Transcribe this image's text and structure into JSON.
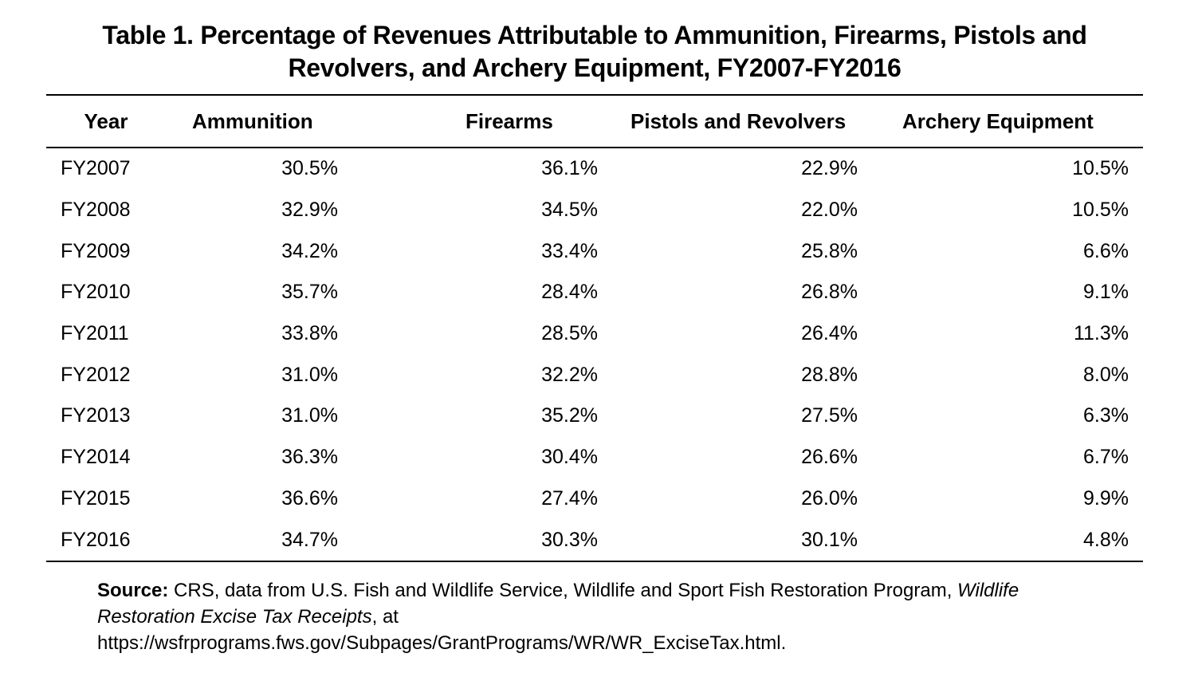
{
  "title": {
    "line1": "Table 1. Percentage of Revenues Attributable to Ammunition, Firearms, Pistols and",
    "line2": "Revolvers, and Archery Equipment, FY2007-FY2016"
  },
  "table": {
    "headers": [
      "Year",
      "Ammunition",
      "Firearms",
      "Pistols and Revolvers",
      "Archery Equipment"
    ],
    "rows": [
      [
        "FY2007",
        "30.5%",
        "36.1%",
        "22.9%",
        "10.5%"
      ],
      [
        "FY2008",
        "32.9%",
        "34.5%",
        "22.0%",
        "10.5%"
      ],
      [
        "FY2009",
        "34.2%",
        "33.4%",
        "25.8%",
        "6.6%"
      ],
      [
        "FY2010",
        "35.7%",
        "28.4%",
        "26.8%",
        "9.1%"
      ],
      [
        "FY2011",
        "33.8%",
        "28.5%",
        "26.4%",
        "11.3%"
      ],
      [
        "FY2012",
        "31.0%",
        "32.2%",
        "28.8%",
        "8.0%"
      ],
      [
        "FY2013",
        "31.0%",
        "35.2%",
        "27.5%",
        "6.3%"
      ],
      [
        "FY2014",
        "36.3%",
        "30.4%",
        "26.6%",
        "6.7%"
      ],
      [
        "FY2015",
        "36.6%",
        "27.4%",
        "26.0%",
        "9.9%"
      ],
      [
        "FY2016",
        "34.7%",
        "30.3%",
        "30.1%",
        "4.8%"
      ]
    ]
  },
  "source": {
    "label": "Source:",
    "text1": " CRS, data from U.S. Fish and Wildlife Service, Wildlife and Sport Fish Restoration Program, ",
    "italic": "Wildlife Restoration Excise Tax Receipts",
    "text2": ", at",
    "url": "https://wsfrprograms.fws.gov/Subpages/GrantPrograms/WR/WR_ExciseTax.html."
  }
}
